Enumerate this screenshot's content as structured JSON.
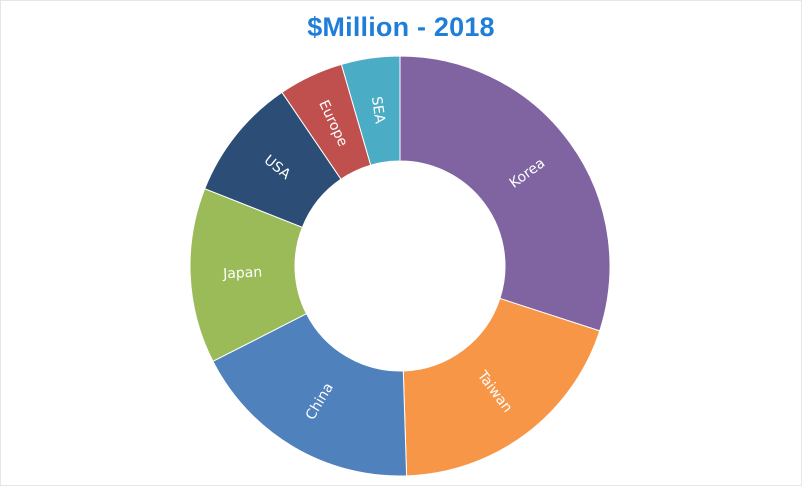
{
  "chart_data": {
    "type": "pie",
    "variant": "donut",
    "title": "$Million - 2018",
    "slices": [
      {
        "label": "Korea",
        "value": 30.0,
        "color": "#8064a2"
      },
      {
        "label": "Taiwan",
        "value": 19.5,
        "color": "#f79646"
      },
      {
        "label": "China",
        "value": 18.0,
        "color": "#4f81bd"
      },
      {
        "label": "Japan",
        "value": 13.5,
        "color": "#9bbb59"
      },
      {
        "label": "USA",
        "value": 9.5,
        "color": "#2c4d75"
      },
      {
        "label": "Europe",
        "value": 5.0,
        "color": "#c0504d"
      },
      {
        "label": "SEA",
        "value": 4.5,
        "color": "#4bacc6"
      }
    ],
    "legend": "none"
  }
}
